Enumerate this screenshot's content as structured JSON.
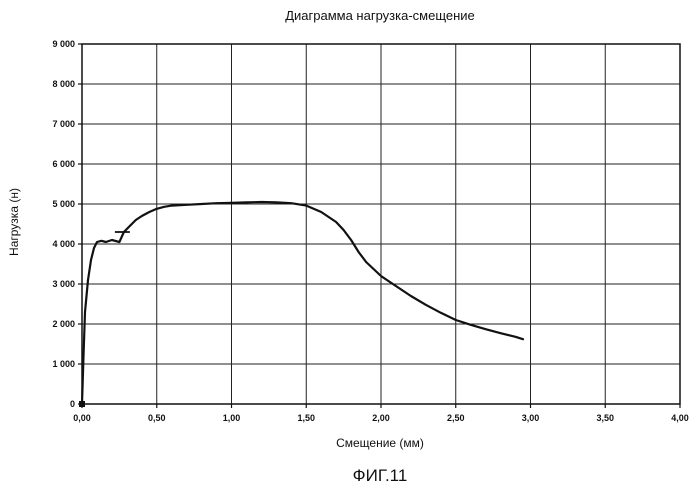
{
  "chart_data": {
    "type": "line",
    "title": "Диаграмма нагрузка-смещение",
    "xlabel": "Смещение (мм)",
    "ylabel": "Нагрузка (н)",
    "xlim": [
      0,
      4
    ],
    "ylim": [
      0,
      9000
    ],
    "x_ticks": [
      0,
      0.5,
      1,
      1.5,
      2,
      2.5,
      3,
      3.5,
      4
    ],
    "x_tick_labels": [
      "0,00",
      "0,50",
      "1,00",
      "1,50",
      "2,00",
      "2,50",
      "3,00",
      "3,50",
      "4,00"
    ],
    "y_ticks": [
      0,
      1000,
      2000,
      3000,
      4000,
      5000,
      6000,
      7000,
      8000,
      9000
    ],
    "y_tick_labels": [
      "0",
      "1 000",
      "2 000",
      "3 000",
      "4 000",
      "5 000",
      "6 000",
      "7 000",
      "8 000",
      "9 000"
    ],
    "grid": true,
    "caption": "ФИГ.11",
    "series": [
      {
        "x": [
          0,
          0.01,
          0.02,
          0.04,
          0.06,
          0.08,
          0.1,
          0.13,
          0.16,
          0.2,
          0.25,
          0.28,
          0.32,
          0.36,
          0.4,
          0.45,
          0.5,
          0.55,
          0.6,
          0.7,
          0.8,
          0.9,
          1.0,
          1.1,
          1.2,
          1.3,
          1.4,
          1.5,
          1.6,
          1.7,
          1.75,
          1.8,
          1.85,
          1.9,
          2.0,
          2.1,
          2.2,
          2.3,
          2.4,
          2.5,
          2.6,
          2.7,
          2.8,
          2.9,
          2.95
        ],
        "y": [
          0,
          1200,
          2300,
          3100,
          3600,
          3900,
          4050,
          4080,
          4050,
          4100,
          4050,
          4300,
          4450,
          4600,
          4700,
          4800,
          4880,
          4930,
          4960,
          4980,
          5000,
          5020,
          5030,
          5040,
          5050,
          5040,
          5020,
          4960,
          4800,
          4550,
          4350,
          4100,
          3800,
          3550,
          3200,
          2950,
          2700,
          2480,
          2280,
          2100,
          1980,
          1870,
          1770,
          1680,
          1620
        ]
      }
    ],
    "annotations": [
      {
        "x": [
          0.22,
          0.32
        ],
        "y": [
          4300,
          4300
        ]
      }
    ]
  }
}
